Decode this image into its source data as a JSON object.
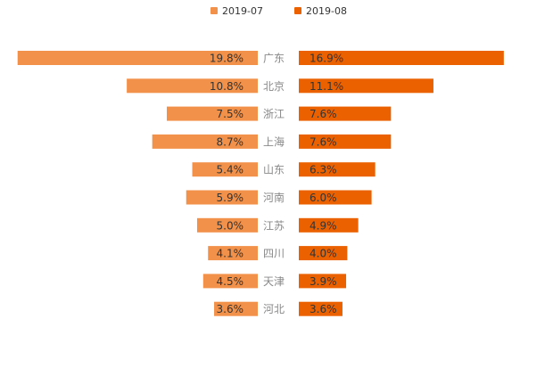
{
  "chart_data": {
    "type": "bar",
    "orientation": "horizontal-butterfly",
    "title": "",
    "legend_position": "top-center",
    "categories": [
      "广东",
      "北京",
      "浙江",
      "上海",
      "山东",
      "河南",
      "江苏",
      "四川",
      "天津",
      "河北"
    ],
    "series": [
      {
        "name": "2019-07",
        "color": "#F2914A",
        "values": [
          19.8,
          10.8,
          7.5,
          8.7,
          5.4,
          5.9,
          5.0,
          4.1,
          4.5,
          3.6
        ],
        "labels": [
          "19.8%",
          "10.8%",
          "7.5%",
          "8.7%",
          "5.4%",
          "5.9%",
          "5.0%",
          "4.1%",
          "4.5%",
          "3.6%"
        ]
      },
      {
        "name": "2019-08",
        "color": "#EB6100",
        "values": [
          16.9,
          11.1,
          7.6,
          7.6,
          6.3,
          6.0,
          4.9,
          4.0,
          3.9,
          3.6
        ],
        "labels": [
          "16.9%",
          "11.1%",
          "7.6%",
          "7.6%",
          "6.3%",
          "6.0%",
          "4.9%",
          "4.0%",
          "3.9%",
          "3.6%"
        ]
      }
    ],
    "value_unit": "%",
    "xlim": [
      0,
      20
    ]
  }
}
